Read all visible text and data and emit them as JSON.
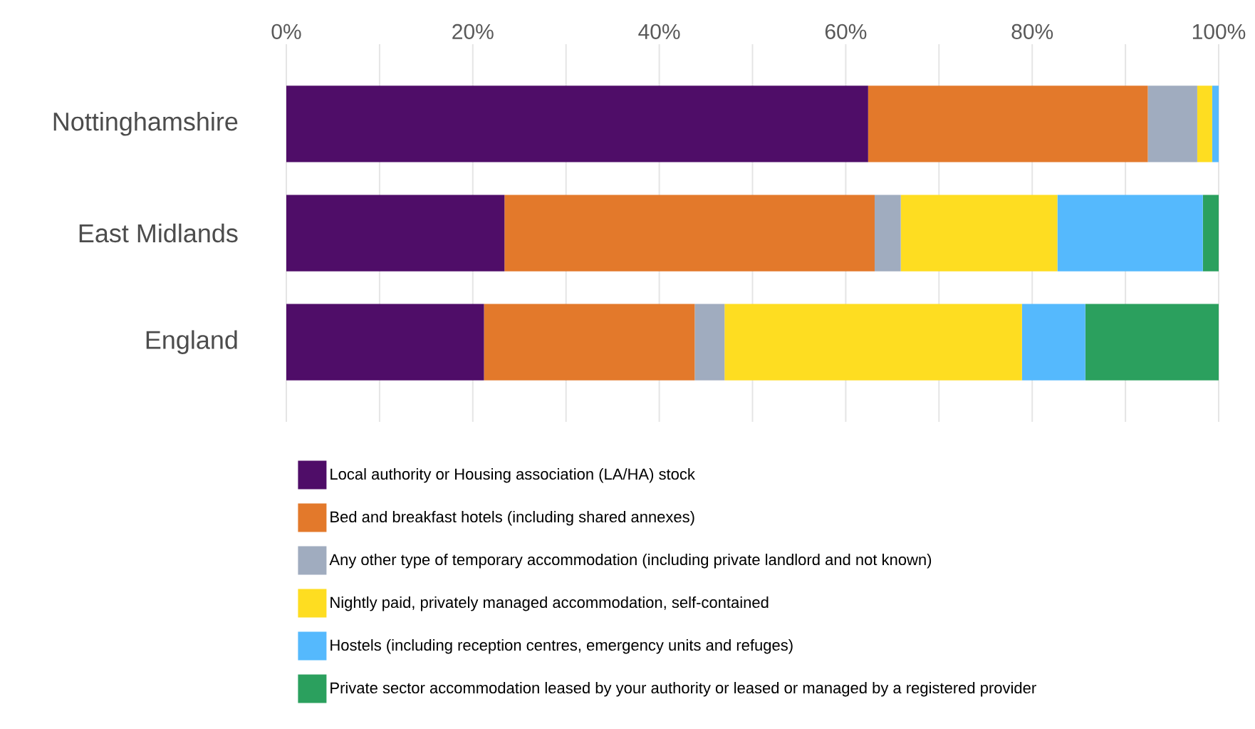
{
  "chart_data": {
    "type": "bar",
    "orientation": "horizontal",
    "stacked": true,
    "categories": [
      "Nottinghamshire",
      "East Midlands",
      "England"
    ],
    "xlim": [
      0,
      100
    ],
    "xticks": [
      {
        "value": 0,
        "label": "0%"
      },
      {
        "value": 10,
        "label": null
      },
      {
        "value": 20,
        "label": "20%"
      },
      {
        "value": 30,
        "label": null
      },
      {
        "value": 40,
        "label": "40%"
      },
      {
        "value": 50,
        "label": null
      },
      {
        "value": 60,
        "label": "60%"
      },
      {
        "value": 70,
        "label": null
      },
      {
        "value": 80,
        "label": "80%"
      },
      {
        "value": 90,
        "label": null
      },
      {
        "value": 100,
        "label": "100%"
      }
    ],
    "grid": "x",
    "legend": "bottom",
    "series": [
      {
        "name": "Local authority or Housing association (LA/HA) stock",
        "color": "#4f0d68",
        "values": [
          62.4,
          23.4,
          21.2
        ]
      },
      {
        "name": "Bed and breakfast hotels (including shared annexes)",
        "color": "#e3792b",
        "values": [
          30.0,
          39.7,
          22.6
        ]
      },
      {
        "name": "Any other type of temporary accommodation (including private landlord and not known)",
        "color": "#a0acbf",
        "values": [
          5.3,
          2.8,
          3.2
        ]
      },
      {
        "name": "Nightly paid, privately managed accommodation, self-contained",
        "color": "#fedd21",
        "values": [
          1.6,
          16.8,
          31.9
        ]
      },
      {
        "name": "Hostels (including reception centres, emergency units and refuges)",
        "color": "#55b9fd",
        "values": [
          0.7,
          15.6,
          6.8
        ]
      },
      {
        "name": "Private sector accommodation leased by your authority or leased or managed by a registered provider",
        "color": "#2ba05e",
        "values": [
          null,
          1.7,
          14.3
        ]
      }
    ]
  }
}
